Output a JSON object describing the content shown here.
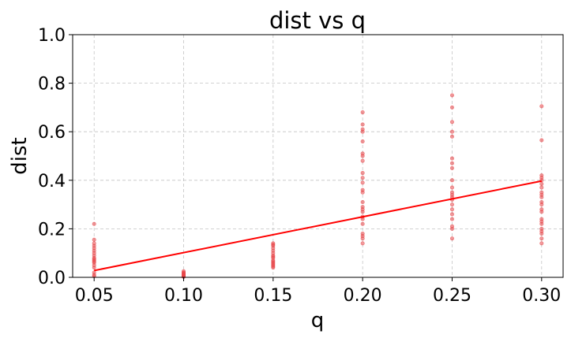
{
  "chart_data": {
    "type": "scatter",
    "title": "dist vs q",
    "xlabel": "q",
    "ylabel": "dist",
    "xlim": [
      0.038,
      0.312
    ],
    "ylim": [
      0.0,
      1.0
    ],
    "xticks": [
      "0.05",
      "0.10",
      "0.15",
      "0.20",
      "0.25",
      "0.30"
    ],
    "yticks": [
      "0.0",
      "0.2",
      "0.4",
      "0.6",
      "0.8",
      "1.0"
    ],
    "grid": true,
    "point_color": "#e8474a",
    "line_color": "#ff0000",
    "series": [
      {
        "type": "scatter",
        "points": [
          [
            0.05,
            0.22
          ],
          [
            0.05,
            0.155
          ],
          [
            0.05,
            0.14
          ],
          [
            0.05,
            0.13
          ],
          [
            0.05,
            0.12
          ],
          [
            0.05,
            0.11
          ],
          [
            0.05,
            0.1
          ],
          [
            0.05,
            0.09
          ],
          [
            0.05,
            0.08
          ],
          [
            0.05,
            0.075
          ],
          [
            0.05,
            0.07
          ],
          [
            0.05,
            0.065
          ],
          [
            0.05,
            0.06
          ],
          [
            0.05,
            0.05
          ],
          [
            0.05,
            0.04
          ],
          [
            0.05,
            0.02
          ],
          [
            0.05,
            0.01
          ],
          [
            0.05,
            0.005
          ],
          [
            0.1,
            0.025
          ],
          [
            0.1,
            0.02
          ],
          [
            0.1,
            0.018
          ],
          [
            0.1,
            0.015
          ],
          [
            0.1,
            0.012
          ],
          [
            0.1,
            0.01
          ],
          [
            0.1,
            0.008
          ],
          [
            0.1,
            0.006
          ],
          [
            0.1,
            0.005
          ],
          [
            0.1,
            0.004
          ],
          [
            0.1,
            0.003
          ],
          [
            0.1,
            0.002
          ],
          [
            0.15,
            0.14
          ],
          [
            0.15,
            0.135
          ],
          [
            0.15,
            0.13
          ],
          [
            0.15,
            0.12
          ],
          [
            0.15,
            0.11
          ],
          [
            0.15,
            0.1
          ],
          [
            0.15,
            0.09
          ],
          [
            0.15,
            0.085
          ],
          [
            0.15,
            0.08
          ],
          [
            0.15,
            0.07
          ],
          [
            0.15,
            0.065
          ],
          [
            0.15,
            0.06
          ],
          [
            0.15,
            0.055
          ],
          [
            0.15,
            0.05
          ],
          [
            0.15,
            0.045
          ],
          [
            0.15,
            0.04
          ],
          [
            0.2,
            0.68
          ],
          [
            0.2,
            0.63
          ],
          [
            0.2,
            0.61
          ],
          [
            0.2,
            0.6
          ],
          [
            0.2,
            0.56
          ],
          [
            0.2,
            0.51
          ],
          [
            0.2,
            0.5
          ],
          [
            0.2,
            0.48
          ],
          [
            0.2,
            0.43
          ],
          [
            0.2,
            0.41
          ],
          [
            0.2,
            0.39
          ],
          [
            0.2,
            0.36
          ],
          [
            0.2,
            0.35
          ],
          [
            0.2,
            0.31
          ],
          [
            0.2,
            0.29
          ],
          [
            0.2,
            0.28
          ],
          [
            0.2,
            0.27
          ],
          [
            0.2,
            0.25
          ],
          [
            0.2,
            0.24
          ],
          [
            0.2,
            0.22
          ],
          [
            0.2,
            0.18
          ],
          [
            0.2,
            0.17
          ],
          [
            0.2,
            0.16
          ],
          [
            0.2,
            0.14
          ],
          [
            0.25,
            0.75
          ],
          [
            0.25,
            0.7
          ],
          [
            0.25,
            0.64
          ],
          [
            0.25,
            0.6
          ],
          [
            0.25,
            0.58
          ],
          [
            0.25,
            0.49
          ],
          [
            0.25,
            0.47
          ],
          [
            0.25,
            0.45
          ],
          [
            0.25,
            0.4
          ],
          [
            0.25,
            0.37
          ],
          [
            0.25,
            0.35
          ],
          [
            0.25,
            0.34
          ],
          [
            0.25,
            0.33
          ],
          [
            0.25,
            0.32
          ],
          [
            0.25,
            0.3
          ],
          [
            0.25,
            0.28
          ],
          [
            0.25,
            0.26
          ],
          [
            0.25,
            0.24
          ],
          [
            0.25,
            0.21
          ],
          [
            0.25,
            0.2
          ],
          [
            0.25,
            0.16
          ],
          [
            0.3,
            0.705
          ],
          [
            0.3,
            0.565
          ],
          [
            0.3,
            0.42
          ],
          [
            0.3,
            0.41
          ],
          [
            0.3,
            0.4
          ],
          [
            0.3,
            0.385
          ],
          [
            0.3,
            0.37
          ],
          [
            0.3,
            0.35
          ],
          [
            0.3,
            0.34
          ],
          [
            0.3,
            0.33
          ],
          [
            0.3,
            0.31
          ],
          [
            0.3,
            0.3
          ],
          [
            0.3,
            0.28
          ],
          [
            0.3,
            0.27
          ],
          [
            0.3,
            0.24
          ],
          [
            0.3,
            0.23
          ],
          [
            0.3,
            0.22
          ],
          [
            0.3,
            0.2
          ],
          [
            0.3,
            0.19
          ],
          [
            0.3,
            0.18
          ],
          [
            0.3,
            0.16
          ],
          [
            0.3,
            0.14
          ]
        ]
      },
      {
        "type": "line",
        "points": [
          [
            0.05,
            0.028
          ],
          [
            0.3,
            0.397
          ]
        ]
      }
    ]
  }
}
